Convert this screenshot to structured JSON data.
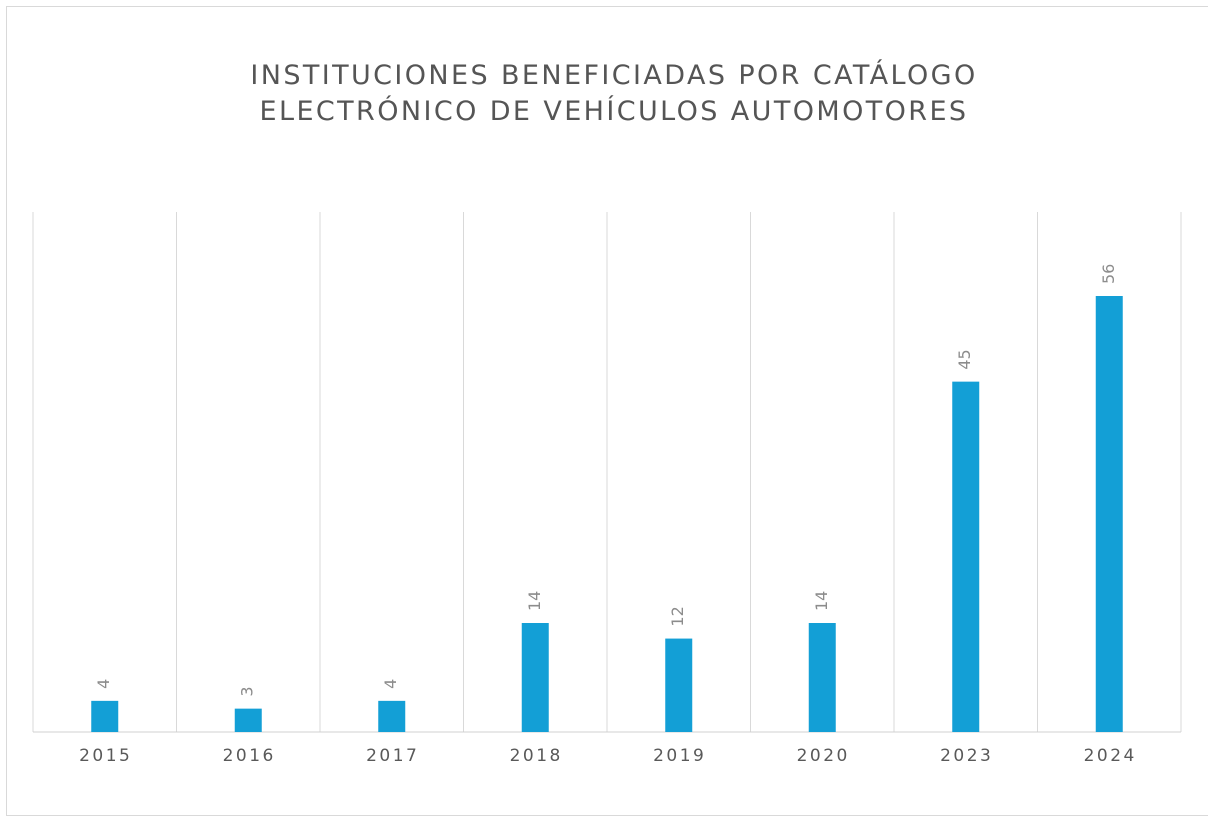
{
  "chart_data": {
    "type": "bar",
    "title": "INSTITUCIONES BENEFICIADAS POR CATÁLOGO ELECTRÓNICO DE VEHÍCULOS AUTOMOTORES",
    "categories": [
      "2015",
      "2016",
      "2017",
      "2018",
      "2019",
      "2020",
      "2023",
      "2024"
    ],
    "values": [
      4,
      3,
      4,
      14,
      12,
      14,
      45,
      56
    ],
    "color": "#139fd6"
  }
}
